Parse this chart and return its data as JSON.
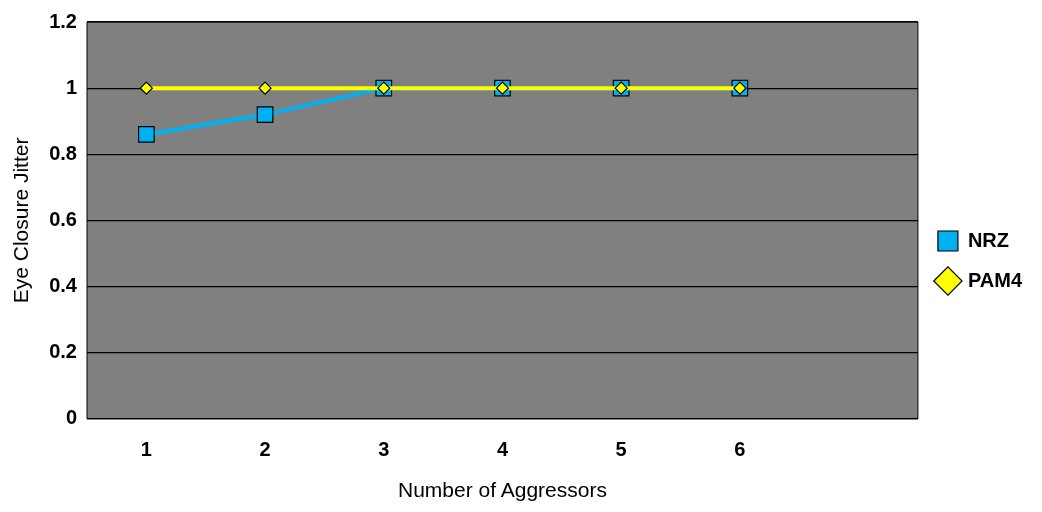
{
  "chart_data": {
    "type": "line",
    "xlabel": "Number of Aggressors",
    "ylabel": "Eye Closure Jitter",
    "categories": [
      "1",
      "2",
      "3",
      "4",
      "5",
      "6",
      null
    ],
    "series": [
      {
        "name": "NRZ",
        "color": "#00b0f0",
        "marker": "square",
        "values": [
          0.86,
          0.92,
          1,
          1,
          1,
          1,
          null
        ]
      },
      {
        "name": "PAM4",
        "color": "#ffff00",
        "marker": "diamond",
        "values": [
          1,
          1,
          1,
          1,
          1,
          1,
          null
        ]
      }
    ],
    "ylim": [
      0,
      1.2
    ],
    "yticks": [
      0,
      0.2,
      0.4,
      0.6,
      0.8,
      1,
      1.2
    ],
    "grid": "y",
    "legend": "right"
  }
}
